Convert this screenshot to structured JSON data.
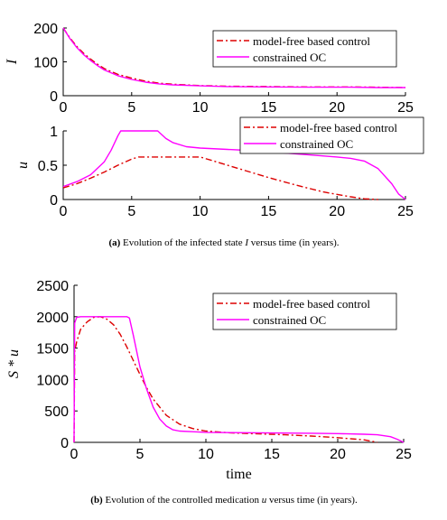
{
  "colors": {
    "model_free": "#dd0000",
    "constrained": "#ff00ff",
    "axis": "#000000"
  },
  "chart_data": [
    {
      "type": "line",
      "ylabel": "I",
      "xlabel": "",
      "xlim": [
        0,
        25
      ],
      "ylim": [
        0,
        200
      ],
      "xticks": [
        "0",
        "5",
        "10",
        "15",
        "20",
        "25"
      ],
      "yticks": [
        "0",
        "100",
        "200"
      ],
      "legend_placement": "top-right",
      "series": [
        {
          "name": "model-free based control",
          "style": "dash-dot",
          "x": [
            0,
            0.5,
            1,
            1.5,
            2,
            2.5,
            3,
            4,
            5,
            6,
            7,
            8,
            10,
            12,
            15,
            18,
            21,
            23,
            25
          ],
          "y": [
            200,
            170,
            145,
            125,
            108,
            93,
            80,
            63,
            52,
            43,
            37,
            34,
            30,
            28,
            27,
            26,
            26,
            25,
            24
          ]
        },
        {
          "name": "constrained OC",
          "style": "solid",
          "x": [
            0,
            0.5,
            1,
            1.5,
            2,
            2.5,
            3,
            4,
            5,
            6,
            7,
            8,
            10,
            12,
            15,
            18,
            21,
            23,
            25
          ],
          "y": [
            200,
            168,
            142,
            121,
            104,
            89,
            76,
            59,
            48,
            40,
            35,
            32,
            29,
            27,
            26,
            25,
            25,
            24,
            24
          ]
        }
      ]
    },
    {
      "type": "line",
      "ylabel": "u",
      "xlabel": "",
      "xlim": [
        0,
        25
      ],
      "ylim": [
        0,
        1
      ],
      "xticks": [
        "0",
        "5",
        "10",
        "15",
        "20",
        "25"
      ],
      "yticks": [
        "0",
        "0.5",
        "1"
      ],
      "legend_placement": "top-right",
      "caption": "(a) Evolution of the infected state I versus time (in years).",
      "series": [
        {
          "name": "model-free based control",
          "style": "dash-dot",
          "x": [
            0,
            1,
            2,
            3,
            4,
            5,
            5.5,
            6,
            7,
            8,
            9,
            10,
            11,
            13,
            15,
            17,
            19,
            21,
            22,
            23
          ],
          "y": [
            0.17,
            0.23,
            0.31,
            0.4,
            0.5,
            0.59,
            0.62,
            0.62,
            0.62,
            0.62,
            0.62,
            0.62,
            0.56,
            0.44,
            0.32,
            0.21,
            0.11,
            0.04,
            0.01,
            0.0
          ]
        },
        {
          "name": "constrained OC",
          "style": "solid",
          "x": [
            0,
            1,
            2,
            3,
            3.5,
            4,
            4.2,
            6.9,
            7.5,
            8,
            9,
            10,
            12,
            14,
            16,
            18,
            20,
            21,
            22,
            23,
            24,
            24.5,
            25
          ],
          "y": [
            0.19,
            0.26,
            0.36,
            0.55,
            0.72,
            0.93,
            1.0,
            1.0,
            0.89,
            0.83,
            0.77,
            0.75,
            0.73,
            0.71,
            0.68,
            0.65,
            0.62,
            0.6,
            0.56,
            0.45,
            0.23,
            0.08,
            0.0
          ]
        }
      ]
    },
    {
      "type": "line",
      "ylabel": "S * u",
      "xlabel": "time",
      "xlim": [
        0,
        25
      ],
      "ylim": [
        0,
        2500
      ],
      "xticks": [
        "0",
        "5",
        "10",
        "15",
        "20",
        "25"
      ],
      "yticks": [
        "0",
        "500",
        "1000",
        "1500",
        "2000",
        "2500"
      ],
      "legend_placement": "top-right",
      "caption": "(b) Evolution of the controlled medication u versus time (in years).",
      "series": [
        {
          "name": "model-free based control",
          "style": "dash-dot",
          "x": [
            0,
            0.05,
            0.2,
            0.5,
            1,
            1.5,
            2,
            2.5,
            3,
            3.5,
            4,
            4.5,
            5,
            5.5,
            6,
            7,
            8,
            9,
            10,
            12,
            14,
            16,
            18,
            20,
            22,
            23
          ],
          "y": [
            0,
            1450,
            1600,
            1800,
            1920,
            1990,
            2000,
            1960,
            1870,
            1720,
            1520,
            1300,
            1080,
            870,
            690,
            430,
            290,
            220,
            180,
            150,
            135,
            120,
            100,
            75,
            40,
            0
          ]
        },
        {
          "name": "constrained OC",
          "style": "solid",
          "x": [
            0,
            0.05,
            0.2,
            0.5,
            1,
            2,
            3,
            4,
            4.2,
            4.5,
            5,
            5.5,
            6,
            6.5,
            7,
            7.5,
            8,
            9,
            10,
            12,
            15,
            18,
            20,
            22,
            23,
            24,
            24.5,
            25
          ],
          "y": [
            0,
            1900,
            1990,
            2000,
            2000,
            2000,
            2000,
            2000,
            1980,
            1700,
            1200,
            850,
            560,
            370,
            260,
            200,
            180,
            170,
            160,
            155,
            150,
            145,
            140,
            130,
            120,
            90,
            50,
            0
          ]
        }
      ]
    }
  ],
  "captions": {
    "a_label": "(a)",
    "a_text": "Evolution of the infected state ",
    "a_var": "I",
    "a_tail": " versus time (in years).",
    "b_label": "(b)",
    "b_text": "Evolution of the controlled medication ",
    "b_var": "u",
    "b_tail": " versus time (in years)."
  }
}
